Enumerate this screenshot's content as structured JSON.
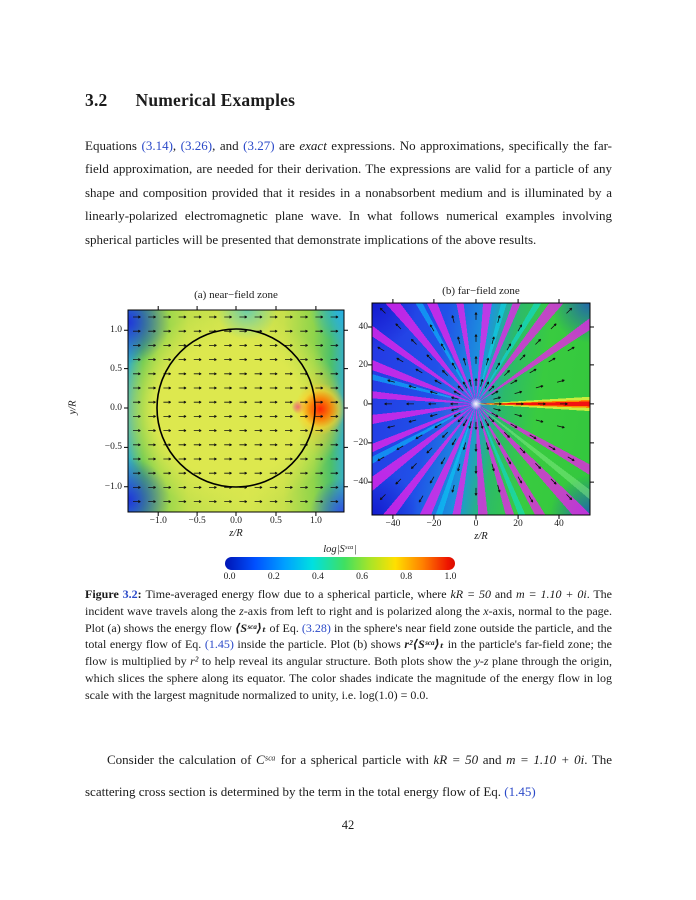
{
  "heading": {
    "number": "3.2",
    "title": "Numerical Examples"
  },
  "para1": {
    "s1": "Equations ",
    "ref1": "(3.14)",
    "s2": ", ",
    "ref2": "(3.26)",
    "s3": ", and ",
    "ref3": "(3.27)",
    "s4": " are ",
    "em1": "exact",
    "s5": " expressions. No approximations, specifically the far-field approximation, are needed for their derivation. The expressions are valid for a particle of any shape and composition provided that it resides in a nonabsorbent medium and is illuminated by a linearly-polarized electromagnetic plane wave. In what follows numerical examples involving spherical particles will be presented that demonstrate implications of the above results."
  },
  "figure": {
    "plot_a": {
      "title": "(a)  near−field zone",
      "xlabel": "z/R",
      "ylabel": "y/R",
      "xticks": [
        "−1.0",
        "−0.5",
        "0.0",
        "0.5",
        "1.0"
      ],
      "yticks": [
        "1.0",
        "0.5",
        "0.0",
        "−0.5",
        "−1.0"
      ]
    },
    "plot_b": {
      "title": "(b)    far−field zone",
      "xlabel": "z/R",
      "xticks": [
        "−40",
        "−20",
        "0",
        "20",
        "40"
      ],
      "yticks": [
        "40",
        "20",
        "0",
        "−20",
        "−40"
      ]
    },
    "colorbar": {
      "label": "log|Sˢᶜᵃ|",
      "ticks": [
        "0.0",
        "0.2",
        "0.4",
        "0.6",
        "0.8",
        "1.0"
      ],
      "gradient_colors": [
        "#0014b4",
        "#0050ff",
        "#00a0ff",
        "#00e0e0",
        "#40e060",
        "#ffe000",
        "#ff8000",
        "#d80c00"
      ]
    }
  },
  "caption": {
    "label_word": "Figure ",
    "label_num": "3.2",
    "label_colon": ": ",
    "t1": " Time-averaged energy flow due to a spherical particle, where ",
    "m1": "kR = 50",
    "t2": " and ",
    "m2": "m = 1.10 + 0i",
    "t3": ". The incident wave travels along the ",
    "m3": "z",
    "t4": "-axis from left to right and is polarized along the ",
    "m4": "x",
    "t5": "-axis, normal to the page. Plot (a) shows the energy flow ",
    "m5": "⟨Sˢᶜᵃ⟩ₜ",
    "t6": " of Eq. ",
    "ref1": "(3.28)",
    "t7": " in the sphere's near field zone outside the particle, and the total energy flow of Eq. ",
    "ref2": "(1.45)",
    "t8": " inside the particle. Plot (b) shows ",
    "m6": "r²⟨Sˢᶜᵃ⟩ₜ",
    "t9": " in the particle's far-field zone; the flow is multiplied by ",
    "m7": "r²",
    "t10": " to help reveal its angular structure. Both plots show the ",
    "m8": "y-z",
    "t11": " plane through the origin, which slices the sphere along its equator. The color shades indicate the magnitude of the energy flow in log scale with the largest magnitude normalized to unity, i.e. log(1.0) = 0.0."
  },
  "para2": {
    "t1": "Consider the calculation of ",
    "m1": "Cˢᶜᵃ",
    "t2": " for a spherical particle with ",
    "m2": "kR = 50",
    "t3": " and ",
    "m3": "m = 1.10 + 0i",
    "t4": ". The scattering cross section is determined by the term in the total energy flow of Eq. ",
    "ref1": "(1.45)"
  },
  "page_number": "42"
}
